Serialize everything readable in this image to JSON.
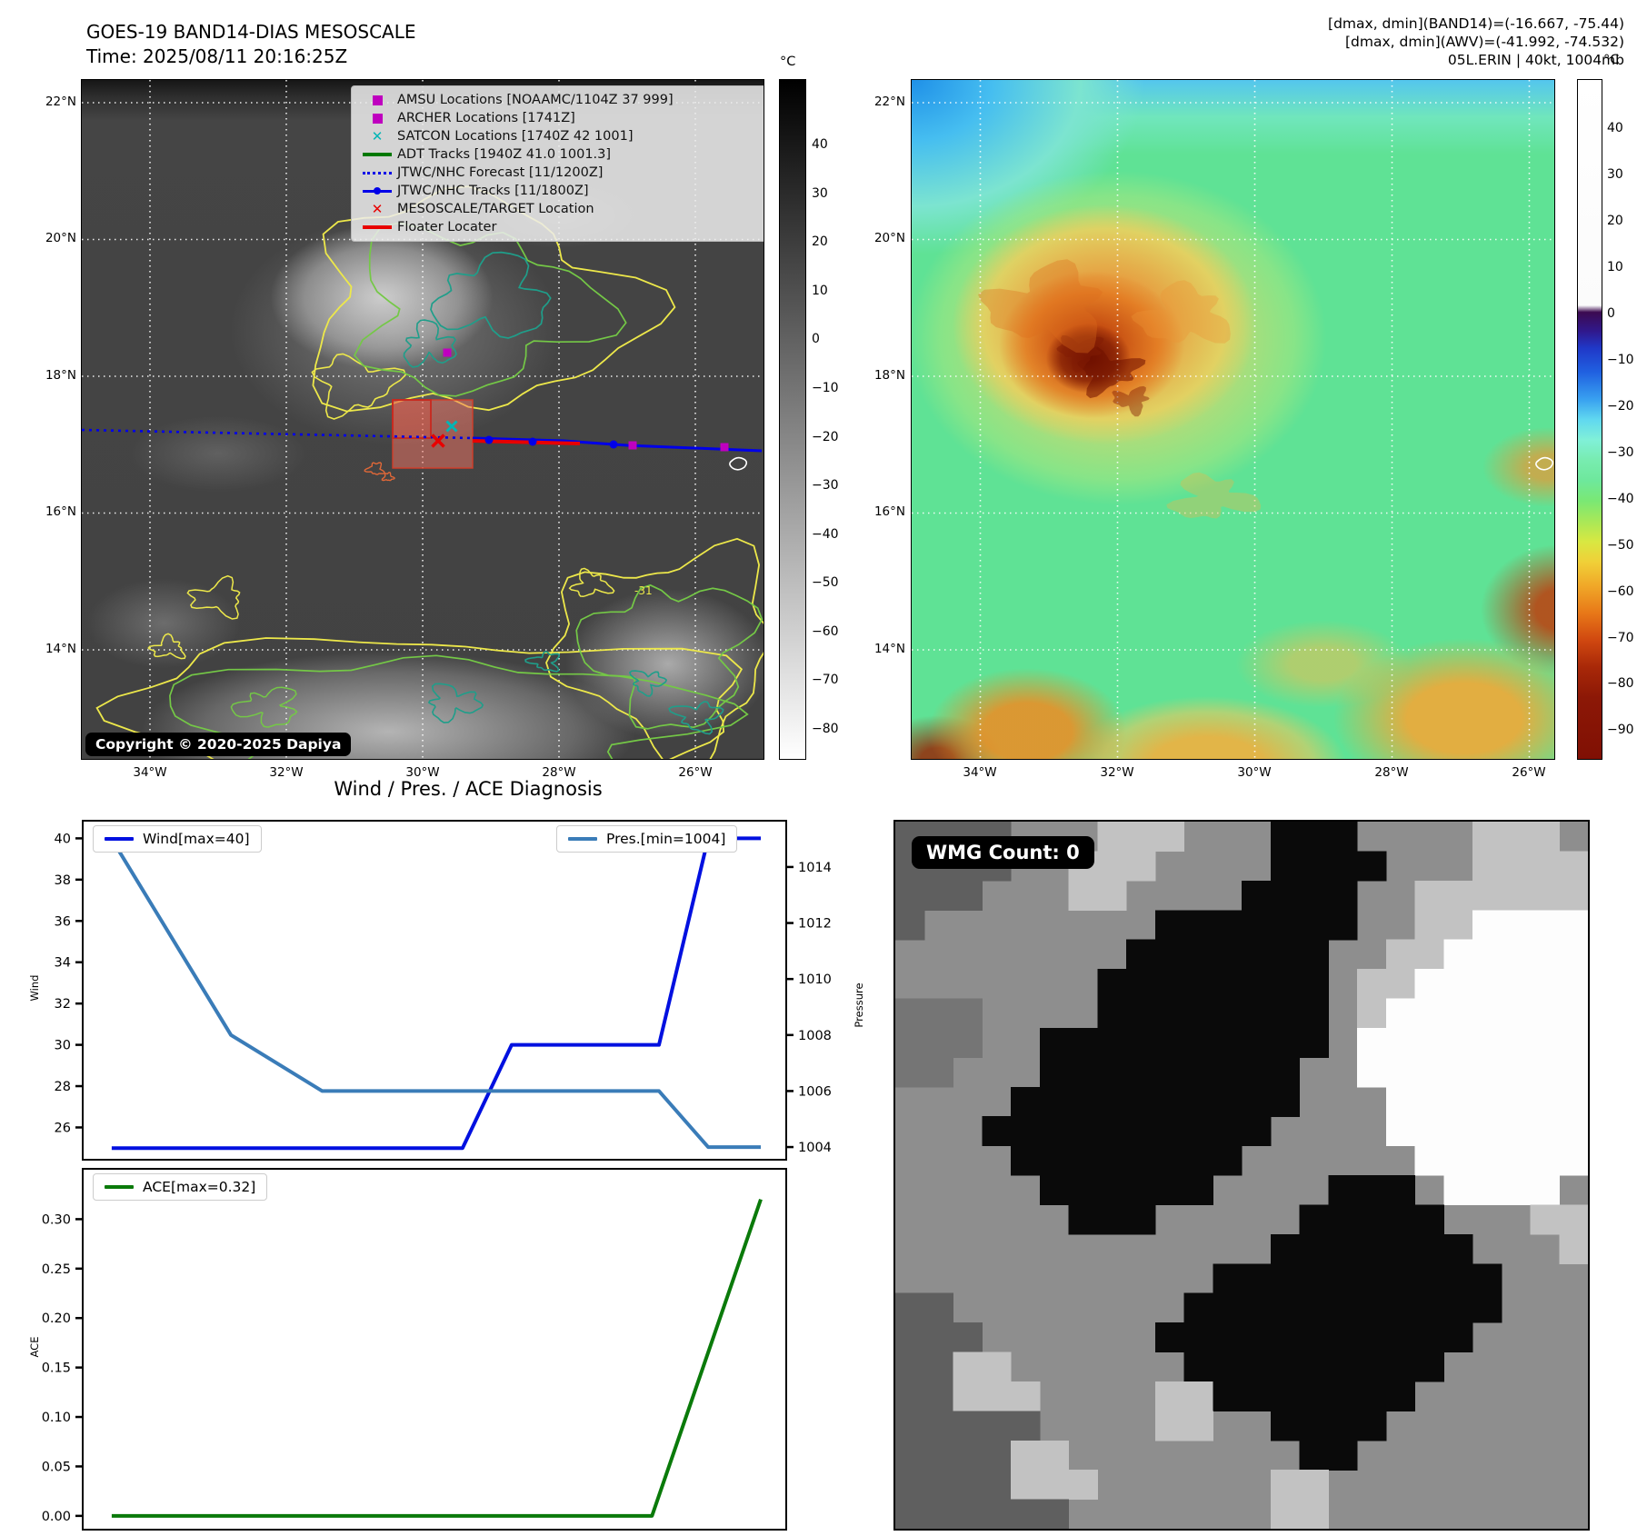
{
  "panel_tl": {
    "title_line1": "GOES-19 BAND14-DIAS MESOSCALE",
    "title_line2": "Time: 2025/08/11 20:16:25Z",
    "legend": [
      {
        "marker": "square-magenta",
        "label": "AMSU Locations [NOAAMC/1104Z 37 999]"
      },
      {
        "marker": "square-magenta",
        "label": "ARCHER Locations [1741Z]"
      },
      {
        "marker": "x-cyan",
        "label": "SATCON Locations [1740Z 42 1001]"
      },
      {
        "marker": "line-green",
        "label": "ADT Tracks [1940Z 41.0 1001.3]"
      },
      {
        "marker": "dotted-blue",
        "label": "JTWC/NHC Forecast [11/1200Z]"
      },
      {
        "marker": "line-dot-blue",
        "label": "JTWC/NHC Tracks [11/1800Z]"
      },
      {
        "marker": "x-red",
        "label": "MESOSCALE/TARGET Location"
      },
      {
        "marker": "line-red",
        "label": "Floater Locater"
      }
    ],
    "copyright": "Copyright © 2020-2025 Dapiya",
    "contour_label": "-31",
    "lat_labels": [
      "22°N",
      "20°N",
      "18°N",
      "16°N",
      "14°N"
    ],
    "lon_labels": [
      "34°W",
      "32°W",
      "30°W",
      "28°W",
      "26°W"
    ],
    "colorbar": {
      "unit": "°C",
      "ticks": [
        40,
        30,
        20,
        10,
        0,
        -10,
        -20,
        -30,
        -40,
        -50,
        -60,
        -70,
        -80
      ],
      "range": [
        53.5,
        -86
      ]
    }
  },
  "panel_tr": {
    "header_line1": "[dmax, dmin](BAND14)=(-16.667, -75.44)",
    "header_line2": "[dmax, dmin](AWV)=(-41.992, -74.532)",
    "header_line3": "05L.ERIN | 40kt, 1004mb",
    "lat_labels": [
      "22°N",
      "20°N",
      "18°N",
      "16°N",
      "14°N"
    ],
    "lon_labels": [
      "34°W",
      "32°W",
      "30°W",
      "28°W",
      "26°W"
    ],
    "colorbar": {
      "unit": "°C",
      "ticks": [
        40,
        30,
        20,
        10,
        0,
        -10,
        -20,
        -30,
        -40,
        -50,
        -60,
        -70,
        -80,
        -90
      ],
      "range": [
        50.6,
        -96
      ]
    }
  },
  "charts_title": "Wind / Pres. / ACE Diagnosis",
  "chart_data": [
    {
      "type": "line",
      "title": "Wind / Pres. / ACE Diagnosis",
      "xlabel": "",
      "axes": {
        "left_label": "Wind",
        "right_label": "Pressure",
        "left_ticks": [
          26,
          28,
          30,
          32,
          34,
          36,
          38,
          40
        ],
        "right_ticks": [
          1004,
          1006,
          1008,
          1010,
          1012,
          1014
        ],
        "left_ylim": [
          24.48,
          40.81
        ],
        "right_ylim": [
          1003.58,
          1015.62
        ],
        "grid": false
      },
      "series": [
        {
          "name": "Wind[max=40]",
          "color": "#0010e0",
          "axis": "left",
          "points": [
            [
              0.04,
              25
            ],
            [
              0.54,
              25
            ],
            [
              0.61,
              30
            ],
            [
              0.82,
              30
            ],
            [
              0.89,
              40
            ],
            [
              0.965,
              40
            ]
          ]
        },
        {
          "name": "Pres.[min=1004]",
          "color": "#3a7cb8",
          "axis": "right",
          "points": [
            [
              0.04,
              1015
            ],
            [
              0.21,
              1008
            ],
            [
              0.34,
              1006
            ],
            [
              0.82,
              1006
            ],
            [
              0.89,
              1004
            ],
            [
              0.965,
              1004
            ]
          ]
        }
      ]
    },
    {
      "type": "line",
      "title": "",
      "axes": {
        "left_label": "ACE",
        "left_ticks": [
          0.0,
          0.05,
          0.1,
          0.15,
          0.2,
          0.25,
          0.3
        ],
        "left_ylim": [
          -0.013,
          0.35
        ],
        "grid": false
      },
      "series": [
        {
          "name": "ACE[max=0.32]",
          "color": "#0a7a0a",
          "axis": "left",
          "points": [
            [
              0.04,
              0.0
            ],
            [
              0.81,
              0.0
            ],
            [
              0.965,
              0.32
            ]
          ]
        }
      ]
    }
  ],
  "panel_br": {
    "wmg_label": "WMG Count: 0",
    "palette": {
      "0": "#8e8e8e",
      "1": "#0a0a0a",
      "2": "#fdfdfd",
      "3": "#5f5f5f",
      "4": "#c2c2c2",
      "5": "#757575"
    },
    "grid": [
      "333300044400011100004440",
      "333300444000011110004444",
      "333000440000111100444444",
      "300000000111111100442222",
      "000000001111111004422222",
      "000000011111111044222222",
      "555000011111111042222222",
      "555001111111111022222222",
      "550001111111110022222222",
      "000011111111110002222222",
      "000111111111100002222222",
      "000011111111000000222222",
      "000001111110000111022220",
      "000000111000001111100044",
      "000000000000011111110004",
      "000000000001111111111000",
      "330000000011111111111000",
      "333000000111111111110000",
      "334400000011111111100000",
      "334440000441111111000000",
      "333330000440011110000000",
      "333344000000001100000000",
      "333344400000044000000000",
      "333333000000044000000000"
    ]
  },
  "colors": {
    "track_blue": "#0000e8",
    "forecast_blue": "#0000e8",
    "adt_green": "#007800",
    "target_red": "#e80000",
    "satcon_cyan": "#00b5b5",
    "amsu_magenta": "#bf00bf",
    "contour_yellow": "#ede84a",
    "contour_green": "#74c846",
    "contour_teal": "#1f9e8a"
  }
}
